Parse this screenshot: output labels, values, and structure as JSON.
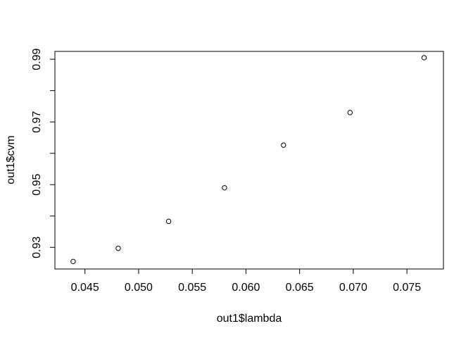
{
  "chart_data": {
    "type": "scatter",
    "xlabel": "out1$lambda",
    "ylabel": "out1$cvm",
    "xlim": [
      0.0422,
      0.0784
    ],
    "ylim": [
      0.9231,
      0.9925
    ],
    "x_ticks": [
      0.045,
      0.05,
      0.055,
      0.06,
      0.065,
      0.07,
      0.075
    ],
    "x_tick_labels": [
      "0.045",
      "0.050",
      "0.055",
      "0.060",
      "0.065",
      "0.070",
      "0.075"
    ],
    "y_ticks": [
      0.93,
      0.94,
      0.95,
      0.96,
      0.97,
      0.98,
      0.99
    ],
    "y_tick_labels": [
      "0.93",
      "",
      "0.95",
      "",
      "0.97",
      "",
      "0.99"
    ],
    "grid": false,
    "marker": "open-circle",
    "series": [
      {
        "x": [
          0.0439,
          0.0481,
          0.0528,
          0.058,
          0.0635,
          0.0697,
          0.0766
        ],
        "y": [
          0.9255,
          0.9297,
          0.9383,
          0.949,
          0.9626,
          0.973,
          0.9905
        ]
      }
    ]
  }
}
